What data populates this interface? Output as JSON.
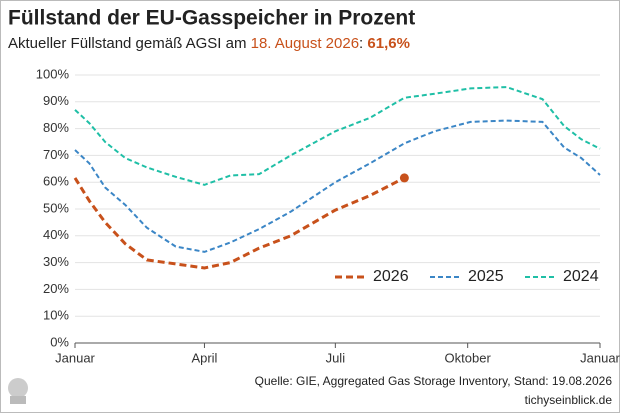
{
  "chart_data": {
    "type": "line",
    "title": "Füllstand der EU-Gasspeicher in Prozent",
    "subtitle": {
      "prefix": "Aktueller Füllstand gemäß AGSI am ",
      "date": "18. August 2026",
      "separator": ": ",
      "value": "61,6%"
    },
    "source": "Quelle: GIE, Aggregated Gas Storage Inventory, Stand: 19.08.2026",
    "site": "tichyseinblick.de",
    "x": [
      0,
      10,
      21,
      35,
      50,
      70,
      90,
      108,
      128,
      150,
      181,
      205,
      229,
      250,
      275,
      300,
      325,
      340,
      352,
      365
    ],
    "xlim": [
      0,
      365
    ],
    "xticks": [
      {
        "value": 0,
        "label": "Januar"
      },
      {
        "value": 90,
        "label": "April"
      },
      {
        "value": 181,
        "label": "Juli"
      },
      {
        "value": 273,
        "label": "Oktober"
      },
      {
        "value": 365,
        "label": "Januar"
      }
    ],
    "ylim": [
      0,
      100
    ],
    "yticks": [
      {
        "value": 0,
        "label": "0%"
      },
      {
        "value": 10,
        "label": "10%"
      },
      {
        "value": 20,
        "label": "20%"
      },
      {
        "value": 30,
        "label": "30%"
      },
      {
        "value": 40,
        "label": "40%"
      },
      {
        "value": 50,
        "label": "50%"
      },
      {
        "value": 60,
        "label": "60%"
      },
      {
        "value": 70,
        "label": "70%"
      },
      {
        "value": 80,
        "label": "80%"
      },
      {
        "value": 90,
        "label": "90%"
      },
      {
        "value": 100,
        "label": "100%"
      }
    ],
    "grid": true,
    "legend": "lower right",
    "series": [
      {
        "name": "2026",
        "color": "#c8511b",
        "marker_last": true,
        "values": [
          61.6,
          53,
          45,
          37,
          31,
          29.5,
          28,
          30,
          35.4,
          40,
          49.6,
          55,
          61.6,
          null,
          null,
          null,
          null,
          null,
          null,
          null
        ]
      },
      {
        "name": "2025",
        "color": "#3b86c6",
        "values": [
          72,
          67,
          58,
          51.5,
          43,
          36,
          34,
          37.5,
          42.5,
          49,
          60,
          67,
          74.5,
          79,
          82.5,
          83,
          82.5,
          73,
          69,
          62.7
        ]
      },
      {
        "name": "2024",
        "color": "#1fbfa6",
        "values": [
          87,
          82,
          75,
          69,
          65.5,
          62,
          59,
          62.5,
          63,
          70,
          79,
          84,
          91.5,
          93,
          95,
          95.5,
          91,
          81,
          76,
          72.5
        ]
      }
    ]
  }
}
